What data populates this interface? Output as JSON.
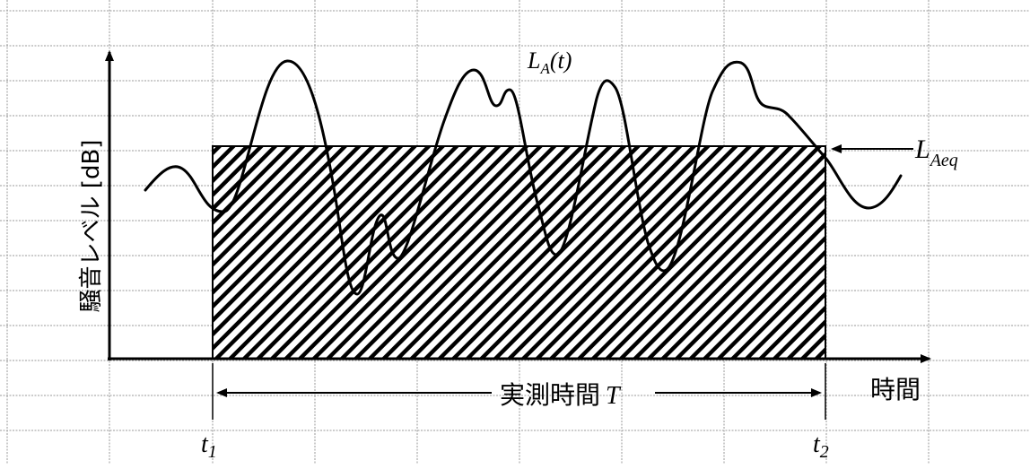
{
  "diagram": {
    "curve_label": {
      "main": "L",
      "sub": "A",
      "suffix": "(t)"
    },
    "eq_label": {
      "main": "L",
      "sub": "Aeq"
    },
    "y_axis_label": "騒音レベル [dB]",
    "x_axis_label": "時間",
    "period_label": {
      "text": "実測時間",
      "var": "T"
    },
    "t1_label": {
      "main": "t",
      "sub": "1"
    },
    "t2_label": {
      "main": "t",
      "sub": "2"
    }
  }
}
